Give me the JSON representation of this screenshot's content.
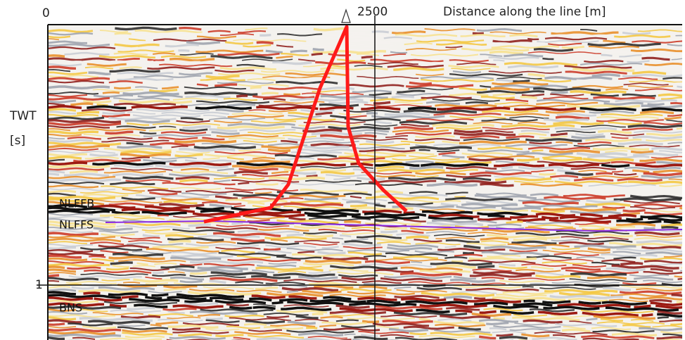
{
  "axes": {
    "x_ticks": [
      "0",
      "2500"
    ],
    "x_label": "Distance along the line [m]",
    "y_label": [
      "TWT",
      "[s]"
    ],
    "y_ticks": [
      "1"
    ]
  },
  "horizons": [
    "NLFFB",
    "NLFFS",
    "BNS"
  ]
}
